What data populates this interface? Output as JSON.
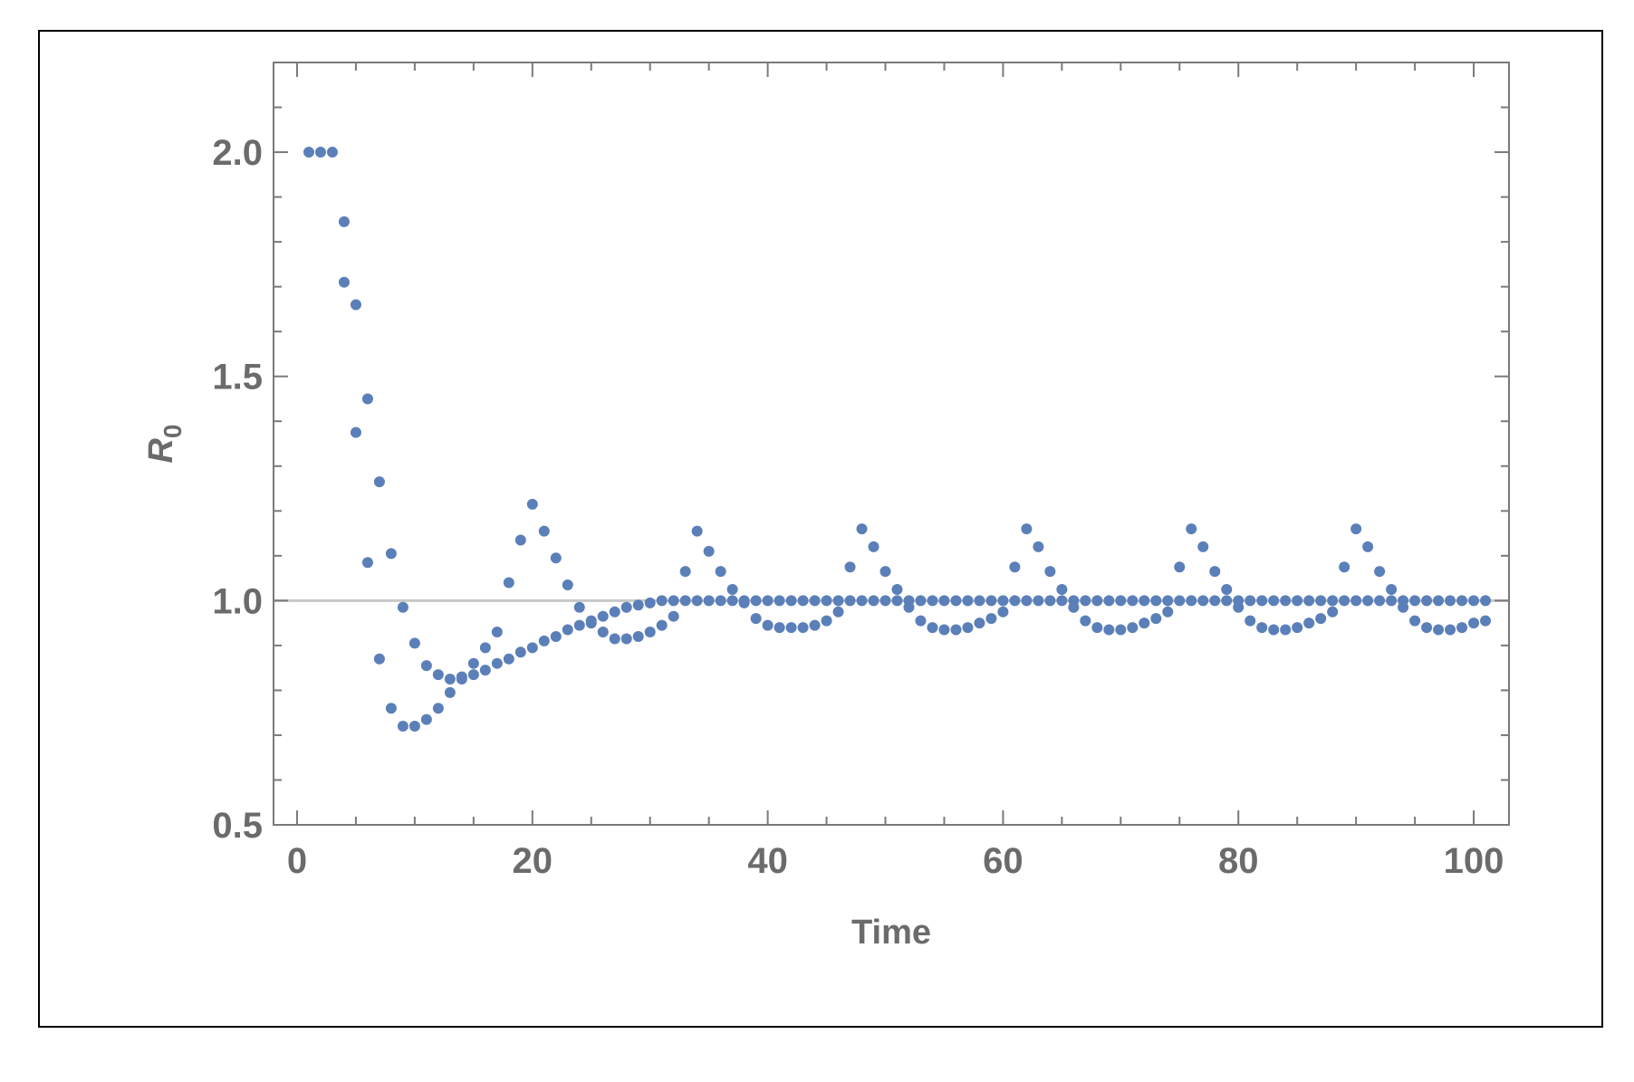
{
  "chart_data": {
    "type": "scatter",
    "title": "",
    "xlabel": "Time",
    "ylabel_main": "R",
    "ylabel_sub": "0",
    "xlim": [
      -2,
      103
    ],
    "ylim": [
      0.5,
      2.2
    ],
    "xticks": [
      0,
      20,
      40,
      60,
      80,
      100
    ],
    "xtick_labels": [
      "0",
      "20",
      "40",
      "60",
      "80",
      "100"
    ],
    "yticks": [
      0.5,
      1.0,
      1.5,
      2.0
    ],
    "ytick_labels": [
      "0.5",
      "1.0",
      "1.5",
      "2.0"
    ],
    "x_minor_step": 5,
    "y_minor_step": 0.1,
    "reference_line_y": 1.0,
    "grid": false,
    "colors": {
      "points": "#5b7fb8",
      "reference_line": "#c8c8c8",
      "axes": "#7a7a7a"
    },
    "series": [
      {
        "points": [
          [
            1,
            2.0
          ],
          [
            2,
            2.0
          ],
          [
            3,
            2.0
          ],
          [
            4,
            1.845
          ],
          [
            5,
            1.66
          ],
          [
            6,
            1.45
          ],
          [
            7,
            1.265
          ],
          [
            8,
            1.105
          ],
          [
            9,
            0.985
          ],
          [
            10,
            0.905
          ],
          [
            11,
            0.855
          ],
          [
            12,
            0.835
          ],
          [
            13,
            0.825
          ],
          [
            14,
            0.825
          ],
          [
            15,
            0.835
          ],
          [
            16,
            0.845
          ],
          [
            17,
            0.86
          ],
          [
            18,
            0.87
          ],
          [
            19,
            0.885
          ],
          [
            20,
            0.895
          ],
          [
            21,
            0.91
          ],
          [
            22,
            0.92
          ],
          [
            23,
            0.935
          ],
          [
            24,
            0.945
          ],
          [
            25,
            0.955
          ],
          [
            26,
            0.965
          ],
          [
            27,
            0.975
          ],
          [
            28,
            0.985
          ],
          [
            29,
            0.99
          ],
          [
            30,
            0.995
          ],
          [
            31,
            1.0
          ],
          [
            32,
            1.0
          ],
          [
            33,
            1.0
          ],
          [
            34,
            1.0
          ],
          [
            35,
            1.0
          ],
          [
            36,
            1.0
          ],
          [
            37,
            1.0
          ],
          [
            38,
            1.0
          ],
          [
            39,
            1.0
          ],
          [
            40,
            1.0
          ],
          [
            41,
            1.0
          ],
          [
            42,
            1.0
          ],
          [
            43,
            1.0
          ],
          [
            44,
            1.0
          ],
          [
            45,
            1.0
          ],
          [
            46,
            1.0
          ],
          [
            47,
            1.0
          ],
          [
            48,
            1.0
          ],
          [
            49,
            1.0
          ],
          [
            50,
            1.0
          ],
          [
            51,
            1.0
          ],
          [
            52,
            1.0
          ],
          [
            53,
            1.0
          ],
          [
            54,
            1.0
          ],
          [
            55,
            1.0
          ],
          [
            56,
            1.0
          ],
          [
            57,
            1.0
          ],
          [
            58,
            1.0
          ],
          [
            59,
            1.0
          ],
          [
            60,
            1.0
          ],
          [
            61,
            1.0
          ],
          [
            62,
            1.0
          ],
          [
            63,
            1.0
          ],
          [
            64,
            1.0
          ],
          [
            65,
            1.0
          ],
          [
            66,
            1.0
          ],
          [
            67,
            1.0
          ],
          [
            68,
            1.0
          ],
          [
            69,
            1.0
          ],
          [
            70,
            1.0
          ],
          [
            71,
            1.0
          ],
          [
            72,
            1.0
          ],
          [
            73,
            1.0
          ],
          [
            74,
            1.0
          ],
          [
            75,
            1.0
          ],
          [
            76,
            1.0
          ],
          [
            77,
            1.0
          ],
          [
            78,
            1.0
          ],
          [
            79,
            1.0
          ],
          [
            80,
            1.0
          ],
          [
            81,
            1.0
          ],
          [
            82,
            1.0
          ],
          [
            83,
            1.0
          ],
          [
            84,
            1.0
          ],
          [
            85,
            1.0
          ],
          [
            86,
            1.0
          ],
          [
            87,
            1.0
          ],
          [
            88,
            1.0
          ],
          [
            89,
            1.0
          ],
          [
            90,
            1.0
          ],
          [
            91,
            1.0
          ],
          [
            92,
            1.0
          ],
          [
            93,
            1.0
          ],
          [
            94,
            1.0
          ],
          [
            95,
            1.0
          ],
          [
            96,
            1.0
          ],
          [
            97,
            1.0
          ],
          [
            98,
            1.0
          ],
          [
            99,
            1.0
          ],
          [
            100,
            1.0
          ],
          [
            101,
            1.0
          ]
        ]
      },
      {
        "points": [
          [
            4,
            1.71
          ],
          [
            5,
            1.375
          ],
          [
            6,
            1.085
          ],
          [
            7,
            0.87
          ],
          [
            8,
            0.76
          ],
          [
            9,
            0.72
          ],
          [
            10,
            0.72
          ],
          [
            11,
            0.735
          ],
          [
            12,
            0.76
          ],
          [
            13,
            0.795
          ],
          [
            14,
            0.83
          ],
          [
            15,
            0.86
          ],
          [
            16,
            0.895
          ],
          [
            17,
            0.93
          ],
          [
            18,
            1.04
          ],
          [
            19,
            1.135
          ],
          [
            20,
            1.215
          ],
          [
            21,
            1.155
          ],
          [
            22,
            1.095
          ],
          [
            23,
            1.035
          ],
          [
            24,
            0.985
          ],
          [
            25,
            0.95
          ],
          [
            26,
            0.93
          ],
          [
            27,
            0.915
          ],
          [
            28,
            0.915
          ],
          [
            29,
            0.92
          ],
          [
            30,
            0.93
          ],
          [
            31,
            0.945
          ],
          [
            32,
            0.965
          ],
          [
            33,
            1.065
          ],
          [
            34,
            1.155
          ],
          [
            35,
            1.11
          ],
          [
            36,
            1.065
          ],
          [
            37,
            1.025
          ],
          [
            38,
            0.995
          ],
          [
            39,
            0.96
          ],
          [
            40,
            0.945
          ],
          [
            41,
            0.94
          ],
          [
            42,
            0.94
          ],
          [
            43,
            0.94
          ],
          [
            44,
            0.945
          ],
          [
            45,
            0.955
          ],
          [
            46,
            0.975
          ],
          [
            47,
            1.075
          ],
          [
            48,
            1.16
          ],
          [
            49,
            1.12
          ],
          [
            50,
            1.065
          ],
          [
            51,
            1.025
          ],
          [
            52,
            0.985
          ],
          [
            53,
            0.955
          ],
          [
            54,
            0.94
          ],
          [
            55,
            0.935
          ],
          [
            56,
            0.935
          ],
          [
            57,
            0.94
          ],
          [
            58,
            0.95
          ],
          [
            59,
            0.96
          ],
          [
            60,
            0.975
          ],
          [
            61,
            1.075
          ],
          [
            62,
            1.16
          ],
          [
            63,
            1.12
          ],
          [
            64,
            1.065
          ],
          [
            65,
            1.025
          ],
          [
            66,
            0.985
          ],
          [
            67,
            0.955
          ],
          [
            68,
            0.94
          ],
          [
            69,
            0.935
          ],
          [
            70,
            0.935
          ],
          [
            71,
            0.94
          ],
          [
            72,
            0.95
          ],
          [
            73,
            0.96
          ],
          [
            74,
            0.975
          ],
          [
            75,
            1.075
          ],
          [
            76,
            1.16
          ],
          [
            77,
            1.12
          ],
          [
            78,
            1.065
          ],
          [
            79,
            1.025
          ],
          [
            80,
            0.985
          ],
          [
            81,
            0.955
          ],
          [
            82,
            0.94
          ],
          [
            83,
            0.935
          ],
          [
            84,
            0.935
          ],
          [
            85,
            0.94
          ],
          [
            86,
            0.95
          ],
          [
            87,
            0.96
          ],
          [
            88,
            0.975
          ],
          [
            89,
            1.075
          ],
          [
            90,
            1.16
          ],
          [
            91,
            1.12
          ],
          [
            92,
            1.065
          ],
          [
            93,
            1.025
          ],
          [
            94,
            0.985
          ],
          [
            95,
            0.955
          ],
          [
            96,
            0.94
          ],
          [
            97,
            0.935
          ],
          [
            98,
            0.935
          ],
          [
            99,
            0.94
          ],
          [
            100,
            0.95
          ],
          [
            101,
            0.955
          ]
        ]
      }
    ]
  }
}
